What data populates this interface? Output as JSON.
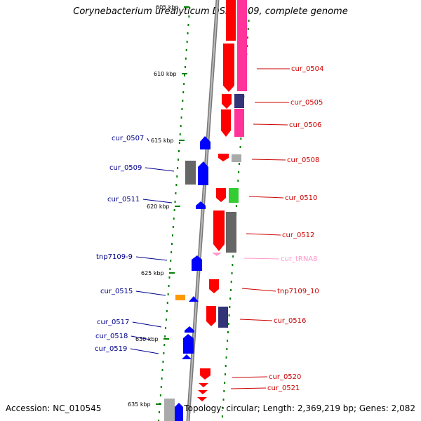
{
  "title": "Corynebacterium urealyticum DSM 7109, complete genome",
  "footer": {
    "accession": "Accession: NC_010545",
    "summary": "Topology: circular; Length: 2,369,219 bp; Genes: 2,082"
  },
  "colors": {
    "forward": "#ff0000",
    "reverse": "#0000ff",
    "label_forward": "#cc0000",
    "label_reverse": "#00008b",
    "trna": "#ff99cc",
    "tick": "#008000",
    "backbone": "#888888"
  },
  "scale_labels": [
    "605 kbp",
    "610 kbp",
    "615 kbp",
    "620 kbp",
    "625 kbp",
    "630 kbp",
    "635 kbp"
  ],
  "genes_right": [
    "cur_0504",
    "cur_0505",
    "cur_0506",
    "cur_0508",
    "cur_0510",
    "cur_0512",
    "cur_tRNA8",
    "tnp7109_10",
    "cur_0516",
    "cur_0520",
    "cur_0521"
  ],
  "genes_left": [
    "cur_0507",
    "cur_0509",
    "cur_0511",
    "tnp7109-9",
    "cur_0515",
    "cur_0517",
    "cur_0518",
    "cur_0519"
  ]
}
